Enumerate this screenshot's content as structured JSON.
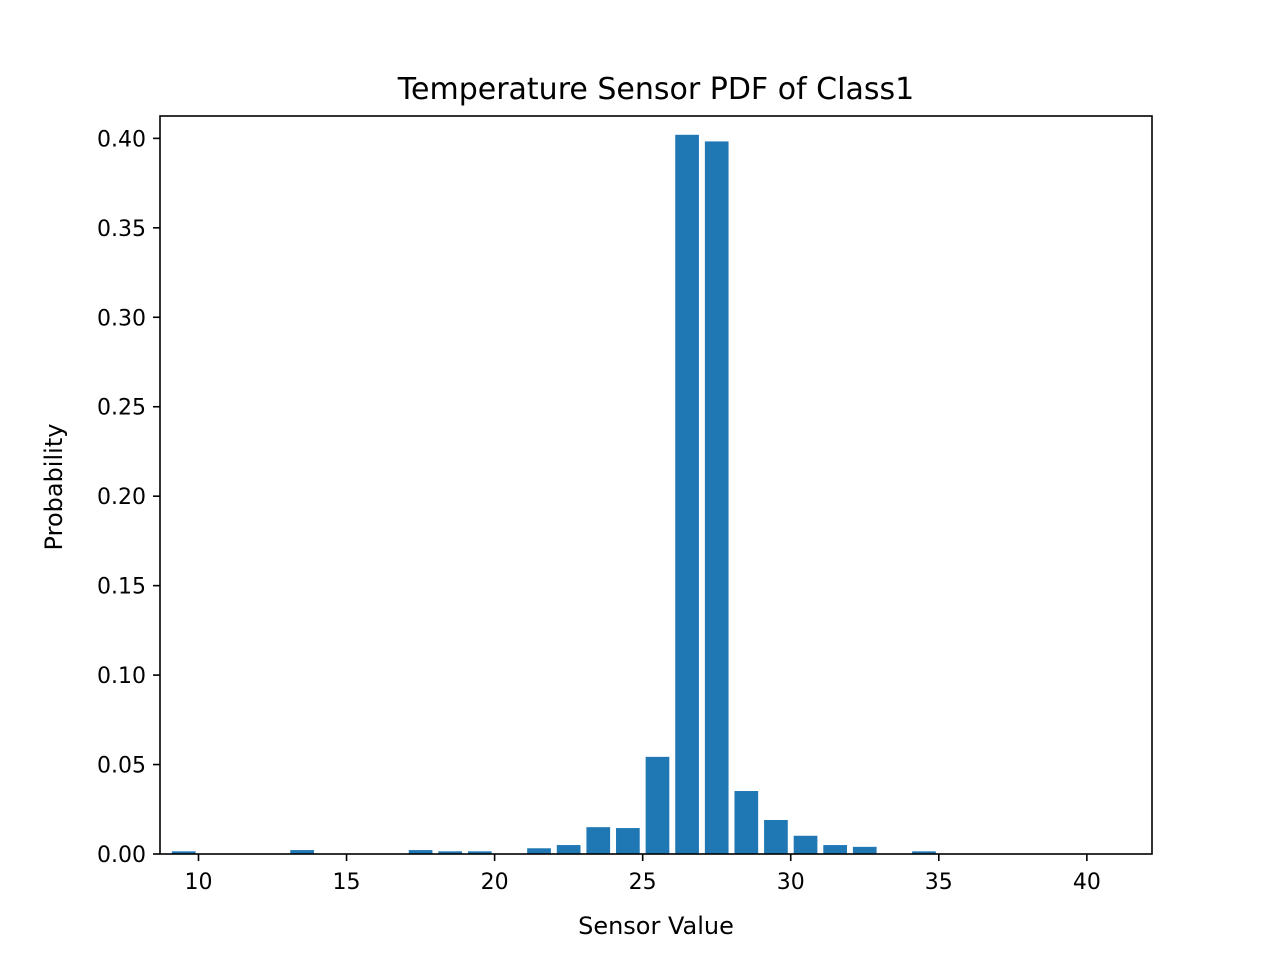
{
  "chart_data": {
    "type": "bar",
    "title": "Temperature Sensor PDF of Class1",
    "xlabel": "Sensor Value",
    "ylabel": "Probability",
    "xlim": [
      8.7,
      42.2
    ],
    "ylim": [
      0,
      0.4125
    ],
    "xticks": [
      10,
      15,
      20,
      25,
      30,
      35,
      40
    ],
    "xtick_labels": [
      "10",
      "15",
      "20",
      "25",
      "30",
      "35",
      "40"
    ],
    "yticks": [
      0,
      0.05,
      0.1,
      0.15,
      0.2,
      0.25,
      0.3,
      0.35,
      0.4
    ],
    "ytick_labels": [
      "0.00",
      "0.05",
      "0.10",
      "0.15",
      "0.20",
      "0.25",
      "0.30",
      "0.35",
      "0.40"
    ],
    "bar_width": 0.8,
    "bar_color": "#1f77b4",
    "grid": false,
    "x": [
      9.5,
      13.5,
      17.5,
      18.5,
      19.5,
      21.5,
      22.5,
      23.5,
      24.5,
      25.5,
      26.5,
      27.5,
      28.5,
      29.5,
      30.5,
      31.5,
      32.5,
      34.5
    ],
    "values": [
      0.0015,
      0.0022,
      0.0022,
      0.0015,
      0.0015,
      0.0032,
      0.005,
      0.015,
      0.0145,
      0.0543,
      0.402,
      0.3983,
      0.0352,
      0.019,
      0.0102,
      0.005,
      0.004,
      0.0015
    ]
  }
}
